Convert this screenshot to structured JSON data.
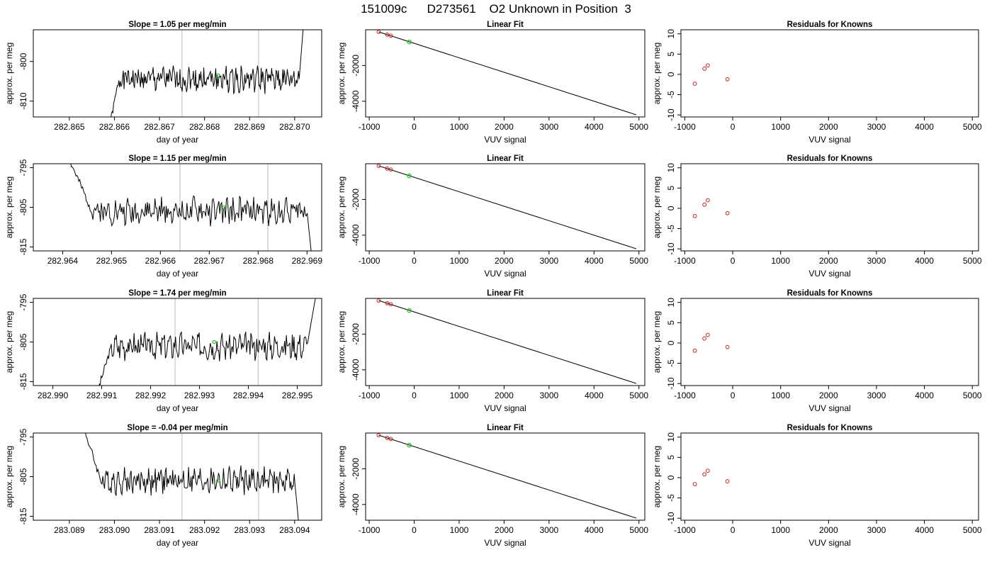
{
  "title": "151009c      D273561    O2 Unknown in Position  3",
  "colors": {
    "trace": "#000000",
    "vline": "#c8c8c8",
    "green": "#22c422",
    "red": "#d02020"
  },
  "chart_data": [
    {
      "type": "line",
      "title": "Slope =  1.05  per meg/min",
      "xlabel": "day of year",
      "ylabel": "approx. per meg",
      "xlim": [
        282.8642,
        282.8706
      ],
      "ylim": [
        -814,
        -792
      ],
      "xticks": [
        "282.865",
        "282.866",
        "282.867",
        "282.868",
        "282.869",
        "282.870"
      ],
      "xtick_values": [
        282.865,
        282.866,
        282.867,
        282.868,
        282.869,
        282.87
      ],
      "yticks": [
        "-810",
        "-800"
      ],
      "ytick_values": [
        -810,
        -800
      ],
      "vlines": [
        282.8675,
        282.8692
      ],
      "series": [
        {
          "kind": "trace",
          "t0": 282.8659,
          "t1": 282.8702,
          "start": -816,
          "rise_end": 282.8661,
          "base": -804.5,
          "slope": 0.0009,
          "seed": 1,
          "end_rise_start": 282.8701,
          "end_value": -790
        }
      ],
      "marker": {
        "x": 282.8683,
        "y": -803.5
      }
    },
    {
      "type": "scatter",
      "title": "Linear Fit",
      "xlabel": "VUV signal",
      "ylabel": "approx. per meg",
      "xlim": [
        -1080,
        5130
      ],
      "ylim": [
        -4880,
        0
      ],
      "xticks": [
        "-1000",
        "0",
        "1000",
        "2000",
        "3000",
        "4000",
        "5000"
      ],
      "xtick_values": [
        -1000,
        0,
        1000,
        2000,
        3000,
        4000,
        5000
      ],
      "yticks": [
        "-4000",
        "-2000"
      ],
      "ytick_values": [
        -4000,
        -2000
      ],
      "line": {
        "x": [
          -790,
          4940
        ],
        "y": [
          -120,
          -4760
        ]
      },
      "points_red": [
        [
          -790,
          -120
        ],
        [
          -600,
          -270
        ],
        [
          -520,
          -330
        ]
      ],
      "points_green": [
        [
          -110,
          -680
        ]
      ]
    },
    {
      "type": "scatter",
      "title": "Residuals for Knowns",
      "xlabel": "VUV signal",
      "ylabel": "approx. per meg",
      "xlim": [
        -1080,
        5130
      ],
      "ylim": [
        -10.5,
        11
      ],
      "xticks": [
        "-1000",
        "0",
        "1000",
        "2000",
        "3000",
        "4000",
        "5000"
      ],
      "xtick_values": [
        -1000,
        0,
        1000,
        2000,
        3000,
        4000,
        5000
      ],
      "yticks": [
        "-10",
        "-5",
        "0",
        "5",
        "10"
      ],
      "ytick_values": [
        -10,
        -5,
        0,
        5,
        10
      ],
      "points_red": [
        [
          -790,
          -2.3
        ],
        [
          -590,
          1.4
        ],
        [
          -520,
          2.2
        ],
        [
          -110,
          -1.2
        ]
      ]
    },
    {
      "type": "line",
      "title": "Slope =  1.15  per meg/min",
      "xlabel": "day of year",
      "ylabel": "approx. per meg",
      "xlim": [
        282.9634,
        282.9693
      ],
      "ylim": [
        -816,
        -794
      ],
      "xticks": [
        "282.964",
        "282.965",
        "282.966",
        "282.967",
        "282.968",
        "282.969"
      ],
      "xtick_values": [
        282.964,
        282.965,
        282.966,
        282.967,
        282.968,
        282.969
      ],
      "yticks": [
        "-815",
        "-805",
        "-795"
      ],
      "ytick_values": [
        -815,
        -805,
        -795
      ],
      "vlines": [
        282.9664,
        282.9682
      ],
      "series": [
        {
          "kind": "trace",
          "t0": 282.9641,
          "t1": 282.9691,
          "start": -792,
          "rise_end": 282.9646,
          "base": -806,
          "slope": 0.0008,
          "seed": 2,
          "end_rise_start": 282.969,
          "end_value": -818
        }
      ],
      "marker": {
        "x": 282.9673,
        "y": -805
      }
    },
    {
      "type": "scatter",
      "title": "Linear Fit",
      "xlabel": "VUV signal",
      "ylabel": "approx. per meg",
      "xlim": [
        -1080,
        5130
      ],
      "ylim": [
        -4880,
        0
      ],
      "xticks": [
        "-1000",
        "0",
        "1000",
        "2000",
        "3000",
        "4000",
        "5000"
      ],
      "xtick_values": [
        -1000,
        0,
        1000,
        2000,
        3000,
        4000,
        5000
      ],
      "yticks": [
        "-4000",
        "-2000"
      ],
      "ytick_values": [
        -4000,
        -2000
      ],
      "line": {
        "x": [
          -790,
          4940
        ],
        "y": [
          -120,
          -4760
        ]
      },
      "points_red": [
        [
          -790,
          -120
        ],
        [
          -600,
          -270
        ],
        [
          -520,
          -330
        ]
      ],
      "points_green": [
        [
          -110,
          -680
        ]
      ]
    },
    {
      "type": "scatter",
      "title": "Residuals for Knowns",
      "xlabel": "VUV signal",
      "ylabel": "approx. per meg",
      "xlim": [
        -1080,
        5130
      ],
      "ylim": [
        -10.5,
        11
      ],
      "xticks": [
        "-1000",
        "0",
        "1000",
        "2000",
        "3000",
        "4000",
        "5000"
      ],
      "xtick_values": [
        -1000,
        0,
        1000,
        2000,
        3000,
        4000,
        5000
      ],
      "yticks": [
        "-10",
        "-5",
        "0",
        "5",
        "10"
      ],
      "ytick_values": [
        -10,
        -5,
        0,
        5,
        10
      ],
      "points_red": [
        [
          -790,
          -1.9
        ],
        [
          -590,
          0.9
        ],
        [
          -520,
          2.0
        ],
        [
          -110,
          -1.2
        ]
      ]
    },
    {
      "type": "line",
      "title": "Slope =  1.74  per meg/min",
      "xlabel": "day of year",
      "ylabel": "approx. per meg",
      "xlim": [
        282.9896,
        282.9955
      ],
      "ylim": [
        -816,
        -794
      ],
      "xticks": [
        "282.990",
        "282.991",
        "282.992",
        "282.993",
        "282.994",
        "282.995"
      ],
      "xtick_values": [
        282.99,
        282.991,
        282.992,
        282.993,
        282.994,
        282.995
      ],
      "yticks": [
        "-815",
        "-805",
        "-795"
      ],
      "ytick_values": [
        -815,
        -805,
        -795
      ],
      "vlines": [
        282.9925,
        282.9942
      ],
      "series": [
        {
          "kind": "trace",
          "t0": 282.9909,
          "t1": 282.9954,
          "start": -818,
          "rise_end": 282.9912,
          "base": -806,
          "slope": 0.0012,
          "seed": 3,
          "end_rise_start": 282.9952,
          "end_value": -792
        }
      ],
      "marker": {
        "x": 282.9933,
        "y": -805
      }
    },
    {
      "type": "scatter",
      "title": "Linear Fit",
      "xlabel": "VUV signal",
      "ylabel": "approx. per meg",
      "xlim": [
        -1080,
        5130
      ],
      "ylim": [
        -4880,
        0
      ],
      "xticks": [
        "-1000",
        "0",
        "1000",
        "2000",
        "3000",
        "4000",
        "5000"
      ],
      "xtick_values": [
        -1000,
        0,
        1000,
        2000,
        3000,
        4000,
        5000
      ],
      "yticks": [
        "-4000",
        "-2000"
      ],
      "ytick_values": [
        -4000,
        -2000
      ],
      "line": {
        "x": [
          -790,
          4940
        ],
        "y": [
          -120,
          -4760
        ]
      },
      "points_red": [
        [
          -790,
          -120
        ],
        [
          -600,
          -270
        ],
        [
          -520,
          -330
        ]
      ],
      "points_green": [
        [
          -110,
          -680
        ]
      ]
    },
    {
      "type": "scatter",
      "title": "Residuals for Knowns",
      "xlabel": "VUV signal",
      "ylabel": "approx. per meg",
      "xlim": [
        -1080,
        5130
      ],
      "ylim": [
        -10.5,
        11
      ],
      "xticks": [
        "-1000",
        "0",
        "1000",
        "2000",
        "3000",
        "4000",
        "5000"
      ],
      "xtick_values": [
        -1000,
        0,
        1000,
        2000,
        3000,
        4000,
        5000
      ],
      "yticks": [
        "-10",
        "-5",
        "0",
        "5",
        "10"
      ],
      "ytick_values": [
        -10,
        -5,
        0,
        5,
        10
      ],
      "points_red": [
        [
          -790,
          -1.9
        ],
        [
          -590,
          1.1
        ],
        [
          -520,
          2.0
        ],
        [
          -110,
          -1.0
        ]
      ]
    },
    {
      "type": "line",
      "title": "Slope =  -0.04  per meg/min",
      "xlabel": "day of year",
      "ylabel": "approx. per meg",
      "xlim": [
        283.0882,
        283.0946
      ],
      "ylim": [
        -816,
        -794
      ],
      "xticks": [
        "283.089",
        "283.090",
        "283.091",
        "283.092",
        "283.093",
        "283.094"
      ],
      "xtick_values": [
        283.089,
        283.09,
        283.091,
        283.092,
        283.093,
        283.094
      ],
      "yticks": [
        "-815",
        "-805",
        "-795"
      ],
      "ytick_values": [
        -815,
        -805,
        -795
      ],
      "vlines": [
        283.0915,
        283.0932
      ],
      "series": [
        {
          "kind": "trace",
          "t0": 283.0893,
          "t1": 283.0941,
          "start": -792,
          "rise_end": 283.0897,
          "base": -806,
          "slope": 0.0,
          "seed": 4,
          "end_rise_start": 283.094,
          "end_value": -818
        }
      ],
      "marker": {
        "x": 283.0923,
        "y": -806
      }
    },
    {
      "type": "scatter",
      "title": "Linear Fit",
      "xlabel": "VUV signal",
      "ylabel": "approx. per meg",
      "xlim": [
        -1080,
        5130
      ],
      "ylim": [
        -4880,
        0
      ],
      "xticks": [
        "-1000",
        "0",
        "1000",
        "2000",
        "3000",
        "4000",
        "5000"
      ],
      "xtick_values": [
        -1000,
        0,
        1000,
        2000,
        3000,
        4000,
        5000
      ],
      "yticks": [
        "-4000",
        "-2000"
      ],
      "ytick_values": [
        -4000,
        -2000
      ],
      "line": {
        "x": [
          -790,
          4940
        ],
        "y": [
          -120,
          -4760
        ]
      },
      "points_red": [
        [
          -790,
          -120
        ],
        [
          -600,
          -270
        ],
        [
          -520,
          -330
        ]
      ],
      "points_green": [
        [
          -110,
          -680
        ]
      ]
    },
    {
      "type": "scatter",
      "title": "Residuals for Knowns",
      "xlabel": "VUV signal",
      "ylabel": "approx. per meg",
      "xlim": [
        -1080,
        5130
      ],
      "ylim": [
        -10.5,
        11
      ],
      "xticks": [
        "-1000",
        "0",
        "1000",
        "2000",
        "3000",
        "4000",
        "5000"
      ],
      "xtick_values": [
        -1000,
        0,
        1000,
        2000,
        3000,
        4000,
        5000
      ],
      "yticks": [
        "-10",
        "-5",
        "0",
        "5",
        "10"
      ],
      "ytick_values": [
        -10,
        -5,
        0,
        5,
        10
      ],
      "points_red": [
        [
          -790,
          -1.6
        ],
        [
          -590,
          0.8
        ],
        [
          -520,
          1.7
        ],
        [
          -110,
          -0.9
        ]
      ]
    }
  ]
}
